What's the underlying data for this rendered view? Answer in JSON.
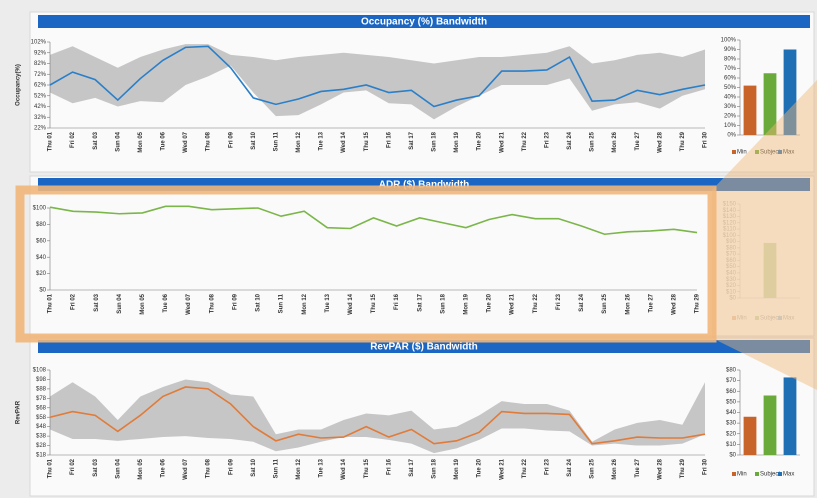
{
  "chart_data": [
    {
      "type": "line",
      "title": "Occupancy (%) Bandwidth",
      "y_label": "Occupancy(%)",
      "categories": [
        "Thu 01",
        "Fri 02",
        "Sat 03",
        "Sun 04",
        "Mon 05",
        "Tue 06",
        "Wed 07",
        "Thu 08",
        "Fri 09",
        "Sat 10",
        "Sun 11",
        "Mon 12",
        "Tue 13",
        "Wed 14",
        "Thu 15",
        "Fri 16",
        "Sat 17",
        "Sun 18",
        "Mon 19",
        "Tue 20",
        "Wed 21",
        "Thu 22",
        "Fri 23",
        "Sat 24",
        "Sun 25",
        "Mon 26",
        "Tue 27",
        "Wed 28",
        "Thu 29",
        "Fri 30"
      ],
      "values": [
        62,
        74,
        67,
        48,
        68,
        85,
        97,
        98,
        78,
        50,
        44,
        49,
        56,
        58,
        62,
        55,
        57,
        42,
        48,
        52,
        75,
        75,
        76,
        88,
        47,
        48,
        57,
        53,
        58,
        62
      ],
      "band_min": [
        55,
        45,
        50,
        42,
        47,
        46,
        62,
        70,
        80,
        55,
        33,
        34,
        44,
        55,
        57,
        45,
        44,
        30,
        42,
        52,
        62,
        62,
        62,
        68,
        38,
        44,
        46,
        40,
        52,
        58
      ],
      "band_max": [
        90,
        98,
        88,
        78,
        88,
        95,
        100,
        100,
        90,
        88,
        85,
        88,
        90,
        92,
        90,
        88,
        85,
        82,
        85,
        88,
        88,
        90,
        92,
        98,
        82,
        85,
        90,
        92,
        88,
        95
      ],
      "color": "#2a7fc9",
      "band_color": "#c6c6c6",
      "ylim": [
        22,
        102
      ],
      "yticks": [
        {
          "value": 22,
          "label": "22%"
        },
        {
          "value": 32,
          "label": "32%"
        },
        {
          "value": 42,
          "label": "42%"
        },
        {
          "value": 52,
          "label": "52%"
        },
        {
          "value": 62,
          "label": "62%"
        },
        {
          "value": 72,
          "label": "72%"
        },
        {
          "value": 82,
          "label": "82%"
        },
        {
          "value": 92,
          "label": "92%"
        },
        {
          "value": 102,
          "label": "102%"
        }
      ]
    },
    {
      "type": "bar",
      "categories": [
        "Min",
        "Subject",
        "Max"
      ],
      "values": [
        52,
        65,
        90
      ],
      "colors": [
        "#c8642a",
        "#6aaa3a",
        "#1f6fb5"
      ],
      "ylim": [
        0,
        100
      ],
      "yticks": [
        {
          "value": 0,
          "label": "0%"
        },
        {
          "value": 10,
          "label": "10%"
        },
        {
          "value": 20,
          "label": "20%"
        },
        {
          "value": 30,
          "label": "30%"
        },
        {
          "value": 40,
          "label": "40%"
        },
        {
          "value": 50,
          "label": "50%"
        },
        {
          "value": 60,
          "label": "60%"
        },
        {
          "value": 70,
          "label": "70%"
        },
        {
          "value": 80,
          "label": "80%"
        },
        {
          "value": 90,
          "label": "90%"
        },
        {
          "value": 100,
          "label": "100%"
        }
      ]
    },
    {
      "type": "line",
      "title": "ADR ($) Bandwidth",
      "categories": [
        "Thu 01",
        "Fri 02",
        "Sat 03",
        "Sun 04",
        "Mon 05",
        "Tue 06",
        "Wed 07",
        "Thu 08",
        "Fri 09",
        "Sat 10",
        "Sun 11",
        "Mon 12",
        "Tue 13",
        "Wed 14",
        "Thu 15",
        "Fri 16",
        "Sat 17",
        "Sun 18",
        "Mon 19",
        "Tue 20",
        "Wed 21",
        "Thu 22",
        "Fri 23",
        "Sat 24",
        "Sun 25",
        "Mon 26",
        "Tue 27",
        "Wed 28",
        "Thu 29"
      ],
      "values": [
        101,
        96,
        95,
        93,
        94,
        102,
        102,
        98,
        99,
        100,
        90,
        96,
        76,
        75,
        88,
        78,
        88,
        82,
        76,
        86,
        92,
        87,
        87,
        78,
        68,
        71,
        72,
        74,
        70
      ],
      "color": "#7ab648",
      "ylim": [
        0,
        100
      ],
      "yticks": [
        {
          "value": 0,
          "label": "$0"
        },
        {
          "value": 20,
          "label": "$20"
        },
        {
          "value": 40,
          "label": "$40"
        },
        {
          "value": 60,
          "label": "$60"
        },
        {
          "value": 80,
          "label": "$80"
        },
        {
          "value": 100,
          "label": "$100"
        }
      ]
    },
    {
      "type": "bar",
      "categories": [
        "Min",
        "Subject",
        "Max"
      ],
      "values": [
        null,
        88,
        null
      ],
      "colors": [
        "#c8642a",
        "#6aaa3a",
        "#1f6fb5"
      ],
      "ylim": [
        0,
        150
      ],
      "yticks": [
        {
          "value": 0,
          "label": "$0"
        },
        {
          "value": 10,
          "label": "$10"
        },
        {
          "value": 20,
          "label": "$20"
        },
        {
          "value": 30,
          "label": "$30"
        },
        {
          "value": 40,
          "label": "$40"
        },
        {
          "value": 50,
          "label": "$50"
        },
        {
          "value": 60,
          "label": "$60"
        },
        {
          "value": 70,
          "label": "$70"
        },
        {
          "value": 80,
          "label": "$80"
        },
        {
          "value": 90,
          "label": "$90"
        },
        {
          "value": 100,
          "label": "$100"
        },
        {
          "value": 110,
          "label": "$110"
        },
        {
          "value": 120,
          "label": "$120"
        },
        {
          "value": 130,
          "label": "$130"
        },
        {
          "value": 140,
          "label": "$140"
        },
        {
          "value": 150,
          "label": "$150"
        }
      ]
    },
    {
      "type": "line",
      "title": "RevPAR ($) Bandwidth",
      "y_label": "RevPAR",
      "categories": [
        "Thu 01",
        "Fri 02",
        "Sat 03",
        "Sun 04",
        "Mon 05",
        "Tue 06",
        "Wed 07",
        "Thu 08",
        "Fri 09",
        "Sat 10",
        "Sun 11",
        "Mon 12",
        "Tue 13",
        "Wed 14",
        "Thu 15",
        "Fri 16",
        "Sat 17",
        "Sun 18",
        "Mon 19",
        "Tue 20",
        "Wed 21",
        "Thu 22",
        "Fri 23",
        "Sat 24",
        "Sun 25",
        "Mon 26",
        "Tue 27",
        "Wed 28",
        "Thu 29",
        "Fri 30"
      ],
      "values": [
        58,
        64,
        60,
        43,
        60,
        80,
        90,
        88,
        72,
        48,
        33,
        40,
        36,
        37,
        48,
        37,
        45,
        30,
        33,
        42,
        64,
        62,
        62,
        61,
        30,
        33,
        37,
        36,
        36,
        40
      ],
      "band_min": [
        45,
        35,
        35,
        33,
        35,
        37,
        38,
        36,
        35,
        32,
        22,
        26,
        32,
        37,
        37,
        34,
        30,
        20,
        25,
        34,
        46,
        46,
        44,
        43,
        28,
        30,
        28,
        28,
        30,
        40
      ],
      "band_max": [
        80,
        95,
        80,
        55,
        80,
        90,
        98,
        95,
        82,
        80,
        40,
        45,
        45,
        55,
        62,
        60,
        65,
        45,
        48,
        60,
        75,
        72,
        72,
        65,
        32,
        45,
        52,
        55,
        50,
        95
      ],
      "color": "#e07b39",
      "band_color": "#c6c6c6",
      "ylim": [
        18,
        108
      ],
      "yticks": [
        {
          "value": 18,
          "label": "$18"
        },
        {
          "value": 28,
          "label": "$28"
        },
        {
          "value": 38,
          "label": "$38"
        },
        {
          "value": 48,
          "label": "$48"
        },
        {
          "value": 58,
          "label": "$58"
        },
        {
          "value": 68,
          "label": "$68"
        },
        {
          "value": 78,
          "label": "$78"
        },
        {
          "value": 88,
          "label": "$88"
        },
        {
          "value": 98,
          "label": "$98"
        },
        {
          "value": 108,
          "label": "$108"
        }
      ]
    },
    {
      "type": "bar",
      "categories": [
        "Min",
        "Subject",
        "Max"
      ],
      "values": [
        36,
        56,
        73
      ],
      "colors": [
        "#c8642a",
        "#6aaa3a",
        "#1f6fb5"
      ],
      "ylim": [
        0,
        80
      ],
      "yticks": [
        {
          "value": 0,
          "label": "$0"
        },
        {
          "value": 10,
          "label": "$10"
        },
        {
          "value": 20,
          "label": "$20"
        },
        {
          "value": 30,
          "label": "$30"
        },
        {
          "value": 40,
          "label": "$40"
        },
        {
          "value": 50,
          "label": "$50"
        },
        {
          "value": 60,
          "label": "$60"
        },
        {
          "value": 70,
          "label": "$70"
        },
        {
          "value": 80,
          "label": "$80"
        }
      ]
    }
  ]
}
